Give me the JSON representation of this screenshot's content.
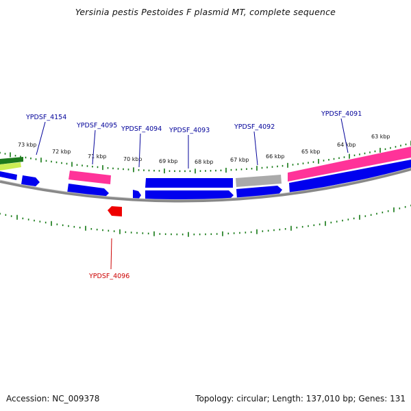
{
  "title": "Yersinia pestis Pestoides F plasmid MT, complete sequence",
  "footer": {
    "accession": "Accession: NC_009378",
    "topology": "Topology: circular; Length: 137,010 bp; Genes: 131"
  },
  "colors": {
    "forward_cds": "#0000ee",
    "reverse_cds": "#0000ee",
    "pseudo": "#aaaaaa",
    "mobile_element": "#ff3399",
    "rna": "#ee0000",
    "scale_ticks": "#117711",
    "backbone": "#888888",
    "label_forward": "#000099",
    "label_reverse": "#cc0000"
  },
  "scale": {
    "unit": "kbp",
    "labels": [
      "73 kbp",
      "72 kbp",
      "71 kbp",
      "70 kbp",
      "69 kbp",
      "68 kbp",
      "67 kbp",
      "66 kbp",
      "65 kbp",
      "64 kbp",
      "63 kbp"
    ]
  },
  "gene_labels": [
    {
      "text": "YPDSF_4154",
      "strand": "forward"
    },
    {
      "text": "YPDSF_4095",
      "strand": "forward"
    },
    {
      "text": "YPDSF_4094",
      "strand": "forward"
    },
    {
      "text": "YPDSF_4093",
      "strand": "forward"
    },
    {
      "text": "YPDSF_4092",
      "strand": "forward"
    },
    {
      "text": "YPDSF_4091",
      "strand": "forward"
    },
    {
      "text": "YPDSF_4096",
      "strand": "reverse"
    }
  ]
}
